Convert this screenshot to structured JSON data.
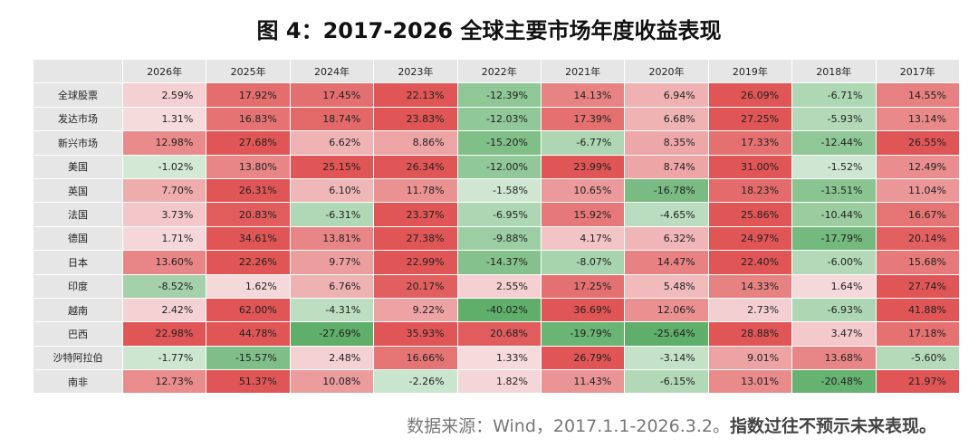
{
  "title": "图 4：2017-2026 全球主要市场年度收益表现",
  "source": {
    "text": "数据来源：Wind，2017.1.1-2026.3.2。",
    "disclaimer": "指数过往不预示未来表现。"
  },
  "colors": {
    "positive_strong": "#e05555",
    "negative_strong": "#5fae6a",
    "neutral": "#f8e8ea",
    "header_bg": "#e6e6e6"
  },
  "chart_data": {
    "type": "heatmap",
    "columns": [
      "2026年",
      "2025年",
      "2024年",
      "2023年",
      "2022年",
      "2021年",
      "2020年",
      "2019年",
      "2018年",
      "2017年"
    ],
    "rows": [
      "全球股票",
      "发达市场",
      "新兴市场",
      "美国",
      "英国",
      "法国",
      "德国",
      "日本",
      "印度",
      "越南",
      "巴西",
      "沙特阿拉伯",
      "南非"
    ],
    "values": [
      [
        2.59,
        17.92,
        17.45,
        22.13,
        -12.39,
        14.13,
        6.94,
        26.09,
        -6.71,
        14.55
      ],
      [
        1.31,
        16.83,
        18.74,
        23.83,
        -12.03,
        17.39,
        6.68,
        27.25,
        -5.93,
        13.14
      ],
      [
        12.98,
        27.68,
        6.62,
        8.86,
        -15.2,
        -6.77,
        8.35,
        17.33,
        -12.44,
        26.55
      ],
      [
        -1.02,
        13.8,
        25.15,
        26.34,
        -12.0,
        23.99,
        8.74,
        31.0,
        -1.52,
        12.49
      ],
      [
        7.7,
        26.31,
        6.1,
        11.78,
        -1.58,
        10.65,
        -16.78,
        18.23,
        -13.51,
        11.04
      ],
      [
        3.73,
        20.83,
        -6.31,
        23.37,
        -6.95,
        15.92,
        -4.65,
        25.86,
        -10.44,
        16.67
      ],
      [
        1.71,
        34.61,
        13.81,
        27.38,
        -9.88,
        4.17,
        6.32,
        24.97,
        -17.79,
        20.14
      ],
      [
        13.6,
        22.26,
        9.77,
        22.99,
        -14.37,
        -8.07,
        14.47,
        22.4,
        -6.0,
        15.68
      ],
      [
        -8.52,
        1.62,
        6.76,
        20.17,
        2.55,
        17.25,
        5.48,
        14.33,
        1.64,
        27.74
      ],
      [
        2.42,
        62.0,
        -4.31,
        9.22,
        -40.02,
        36.69,
        12.06,
        2.73,
        -6.93,
        41.88
      ],
      [
        22.98,
        44.78,
        -27.69,
        35.93,
        20.68,
        -19.79,
        -25.64,
        28.88,
        3.47,
        17.18
      ],
      [
        -1.77,
        -15.57,
        2.48,
        16.66,
        1.33,
        26.79,
        -3.14,
        9.01,
        13.68,
        -5.6
      ],
      [
        12.73,
        51.37,
        10.08,
        -2.26,
        1.82,
        11.43,
        -6.15,
        13.01,
        -20.48,
        21.97
      ]
    ],
    "unit": "%"
  }
}
